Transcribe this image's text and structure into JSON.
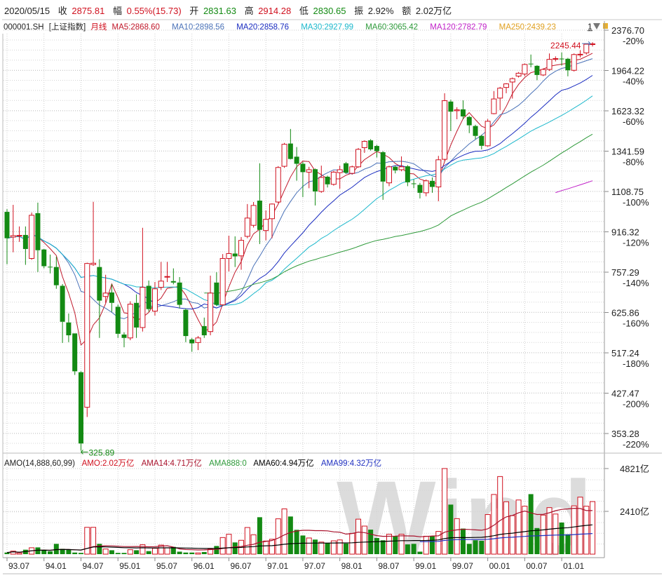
{
  "header": {
    "date": "2020/05/15",
    "close_label": "收",
    "close": "2875.81",
    "change_label": "幅",
    "change": "0.55%(15.73)",
    "open_label": "开",
    "open": "2831.63",
    "high_label": "高",
    "high": "2914.28",
    "low_label": "低",
    "low": "2830.65",
    "amplitude_label": "振",
    "amplitude": "2.92%",
    "amount_label": "额",
    "amount": "2.02万亿"
  },
  "legend": {
    "code": "000001.SH",
    "name": "[上证指数]",
    "period": "月线",
    "ma5": "MA5:2868.60",
    "ma10": "MA10:2898.56",
    "ma20": "MA20:2858.76",
    "ma30": "MA30:2927.99",
    "ma60": "MA60:3065.42",
    "ma120": "MA120:2782.79",
    "ma250": "MA250:2439.23",
    "count": "1"
  },
  "volume_legend": {
    "title": "AMO(14,888,60,99)",
    "amo": "AMO:2.02万亿",
    "ama14": "AMA14:4.71万亿",
    "ama888": "AMA888:0",
    "ama60": "AMA60:4.94万亿",
    "ama99": "AMA99:4.32万亿"
  },
  "watermark": "Wind",
  "colors": {
    "up": "#d0101e",
    "down": "#138a13",
    "ma5": "#c0182a",
    "ma10": "#4a72b8",
    "ma20": "#1a2cc0",
    "ma30": "#1cb8cc",
    "ma60": "#2e9a3a",
    "ma120": "#c020c8",
    "ma250": "#e0a020",
    "ama14": "#a8102a",
    "ama60": "#000000",
    "ama99": "#2030c0",
    "ama888": "#2e9a3a"
  },
  "chart_data": {
    "type": "candlestick",
    "period": "monthly",
    "price_scale": "log",
    "price_ticks": [
      2376.7,
      1964.22,
      1623.32,
      1341.59,
      1108.75,
      916.32,
      757.29,
      625.86,
      517.24,
      427.47,
      353.28
    ],
    "price_tick_labels": [
      "2376.70",
      "1964.22",
      "1623.32",
      "1341.59",
      "1108.75",
      "916.32",
      "757.29",
      "625.86",
      "517.24",
      "427.47",
      "353.28"
    ],
    "pct_tick_labels": [
      "-20%",
      "-40%",
      "-60%",
      "-80%",
      "-100%",
      "-120%",
      "-140%",
      "-160%",
      "-180%",
      "-200%",
      "-220%"
    ],
    "x_labels": [
      {
        "index": 0,
        "label": "93.07"
      },
      {
        "index": 6,
        "label": "94.01"
      },
      {
        "index": 12,
        "label": "94.07"
      },
      {
        "index": 18,
        "label": "95.01"
      },
      {
        "index": 24,
        "label": "95.07"
      },
      {
        "index": 30,
        "label": "96.01"
      },
      {
        "index": 36,
        "label": "96.07"
      },
      {
        "index": 42,
        "label": "97.01"
      },
      {
        "index": 48,
        "label": "97.07"
      },
      {
        "index": 54,
        "label": "98.01"
      },
      {
        "index": 60,
        "label": "98.07"
      },
      {
        "index": 66,
        "label": "99.01"
      },
      {
        "index": 72,
        "label": "99.07"
      },
      {
        "index": 78,
        "label": "00.01"
      },
      {
        "index": 84,
        "label": "00.07"
      },
      {
        "index": 90,
        "label": "01.01"
      }
    ],
    "annotations": [
      {
        "index": 12,
        "value": 325.89,
        "label": "325.89",
        "kind": "low"
      },
      {
        "index": 95,
        "value": 2245.44,
        "label": "2245.44",
        "kind": "high"
      }
    ],
    "ohlc_fields": [
      "open",
      "high",
      "low",
      "close"
    ],
    "ohlc": [
      [
        1007,
        1020,
        786,
        889
      ],
      [
        894,
        1041,
        832,
        900
      ],
      [
        899,
        940,
        874,
        901
      ],
      [
        903,
        940,
        784,
        845
      ],
      [
        808,
        1004,
        803,
        991
      ],
      [
        1001,
        1052,
        758,
        840
      ],
      [
        843,
        845,
        771,
        779
      ],
      [
        777,
        823,
        753,
        776
      ],
      [
        776,
        815,
        700,
        712
      ],
      [
        710,
        716,
        542,
        599
      ],
      [
        597,
        623,
        544,
        562
      ],
      [
        567,
        567,
        466,
        474
      ],
      [
        472,
        474,
        325.89,
        337
      ],
      [
        400,
        792,
        382,
        789
      ],
      [
        785,
        1056,
        780,
        790
      ],
      [
        776,
        805,
        555,
        662
      ],
      [
        675,
        748,
        655,
        686
      ],
      [
        688,
        716,
        628,
        655
      ],
      [
        643,
        650,
        555,
        566
      ],
      [
        564,
        570,
        531,
        555
      ],
      [
        555,
        660,
        549,
        651
      ],
      [
        655,
        682,
        555,
        583
      ],
      [
        583,
        934,
        572,
        705
      ],
      [
        710,
        728,
        628,
        636
      ],
      [
        630,
        723,
        617,
        700
      ],
      [
        705,
        795,
        696,
        726
      ],
      [
        740,
        795,
        723,
        742
      ],
      [
        726,
        771,
        715,
        721
      ],
      [
        721,
        740,
        638,
        649
      ],
      [
        634,
        638,
        544,
        560
      ],
      [
        551,
        555,
        520,
        541
      ],
      [
        543,
        560,
        524,
        555
      ],
      [
        587,
        611,
        555,
        562
      ],
      [
        572,
        745,
        562,
        686
      ],
      [
        721,
        757,
        645,
        649
      ],
      [
        649,
        825,
        645,
        808
      ],
      [
        808,
        900,
        760,
        827
      ],
      [
        827,
        897,
        776,
        816
      ],
      [
        818,
        894,
        766,
        880
      ],
      [
        897,
        1045,
        889,
        978
      ],
      [
        945,
        1055,
        935,
        1038
      ],
      [
        1062,
        1267,
        865,
        925
      ],
      [
        922,
        1014,
        880,
        972
      ],
      [
        975,
        1048,
        889,
        1045
      ],
      [
        1055,
        1250,
        1050,
        1242
      ],
      [
        1249,
        1395,
        1240,
        1386
      ],
      [
        1391,
        1490,
        1290,
        1293
      ],
      [
        1307,
        1368,
        1167,
        1264
      ],
      [
        1264,
        1275,
        1080,
        1215
      ],
      [
        1215,
        1246,
        1126,
        1229
      ],
      [
        1232,
        1236,
        1038,
        1109
      ],
      [
        1109,
        1253,
        1102,
        1185
      ],
      [
        1189,
        1195,
        1130,
        1147
      ],
      [
        1147,
        1222,
        1140,
        1215
      ],
      [
        1212,
        1253,
        1123,
        1229
      ],
      [
        1267,
        1275,
        1205,
        1212
      ],
      [
        1208,
        1253,
        1201,
        1246
      ],
      [
        1246,
        1362,
        1240,
        1353
      ],
      [
        1364,
        1412,
        1331,
        1405
      ],
      [
        1412,
        1420,
        1345,
        1353
      ],
      [
        1375,
        1383,
        1302,
        1342
      ],
      [
        1335,
        1342,
        1066,
        1162
      ],
      [
        1155,
        1253,
        1137,
        1246
      ],
      [
        1246,
        1253,
        1208,
        1225
      ],
      [
        1229,
        1309,
        1220,
        1246
      ],
      [
        1249,
        1256,
        1137,
        1158
      ],
      [
        1152,
        1174,
        1126,
        1150
      ],
      [
        1144,
        1155,
        1073,
        1102
      ],
      [
        1102,
        1174,
        1084,
        1166
      ],
      [
        1166,
        1185,
        1102,
        1133
      ],
      [
        1133,
        1312,
        1059,
        1288
      ],
      [
        1291,
        1764,
        1284,
        1703
      ],
      [
        1696,
        1710,
        1475,
        1617
      ],
      [
        1624,
        1651,
        1560,
        1631
      ],
      [
        1635,
        1706,
        1560,
        1581
      ],
      [
        1577,
        1585,
        1461,
        1516
      ],
      [
        1511,
        1520,
        1420,
        1442
      ],
      [
        1442,
        1450,
        1353,
        1376
      ],
      [
        1376,
        1562,
        1370,
        1545
      ],
      [
        1602,
        1782,
        1597,
        1717
      ],
      [
        1724,
        1818,
        1629,
        1807
      ],
      [
        1813,
        1850,
        1764,
        1844
      ],
      [
        1860,
        1900,
        1720,
        1890
      ],
      [
        1913,
        1950,
        1900,
        1939
      ],
      [
        1932,
        2030,
        1913,
        2021
      ],
      [
        2029,
        2118,
        1994,
        2026
      ],
      [
        2008,
        2015,
        1876,
        1923
      ],
      [
        1923,
        1985,
        1913,
        1974
      ],
      [
        1974,
        2129,
        1960,
        2070
      ],
      [
        2075,
        2100,
        2050,
        2078
      ],
      [
        2078,
        2140,
        2010,
        2074
      ],
      [
        2076,
        2085,
        1911,
        1966
      ],
      [
        1966,
        2129,
        1955,
        2118
      ],
      [
        2118,
        2162,
        2090,
        2121
      ],
      [
        2135,
        2230,
        2118,
        2224
      ],
      [
        2226,
        2245.44,
        2200,
        2228
      ]
    ],
    "moving_averages": [
      {
        "name": "MA5",
        "period": 5,
        "start_index": 0,
        "color_key": "ma5"
      },
      {
        "name": "MA10",
        "period": 10,
        "start_index": 0,
        "color_key": "ma10"
      },
      {
        "name": "MA20",
        "period": 20,
        "start_index": 0,
        "color_key": "ma20"
      },
      {
        "name": "MA30",
        "period": 30,
        "start_index": 0,
        "color_key": "ma30"
      },
      {
        "name": "MA60",
        "period": 60,
        "start_index": 32,
        "color_key": "ma60"
      },
      {
        "name": "MA120",
        "period": 120,
        "start_index": 89,
        "color_key": "ma120"
      }
    ],
    "volume_unit": "亿",
    "volume_ticks": [
      4821,
      2410
    ],
    "volume_tick_labels": [
      "4821亿",
      "2410亿"
    ],
    "volume": [
      90,
      170,
      70,
      250,
      360,
      380,
      250,
      160,
      580,
      300,
      250,
      90,
      70,
      1510,
      1510,
      580,
      290,
      220,
      70,
      70,
      250,
      220,
      530,
      170,
      330,
      510,
      360,
      410,
      140,
      90,
      90,
      70,
      120,
      280,
      460,
      935,
      1120,
      660,
      780,
      1500,
      1090,
      2080,
      740,
      840,
      1990,
      2550,
      2120,
      1370,
      1050,
      910,
      820,
      680,
      620,
      750,
      800,
      600,
      1170,
      1970,
      1580,
      1380,
      910,
      780,
      1120,
      1010,
      1120,
      550,
      580,
      140,
      1010,
      1010,
      1280,
      4821,
      2790,
      2000,
      1440,
      580,
      780,
      750,
      2230,
      3360,
      4370,
      2950,
      2170,
      3050,
      2700,
      3380,
      1470,
      2200,
      2620,
      2260,
      1780,
      1120,
      2720,
      3210,
      2700,
      2960
    ],
    "volume_averages": [
      {
        "name": "AMA14",
        "period": 14,
        "start_index": 0,
        "color_key": "ama14"
      },
      {
        "name": "AMA60",
        "period": 60,
        "start_index": 0,
        "color_key": "ama60"
      },
      {
        "name": "AMA99",
        "period": 99,
        "start_index": 67,
        "color_key": "ama99"
      }
    ]
  }
}
